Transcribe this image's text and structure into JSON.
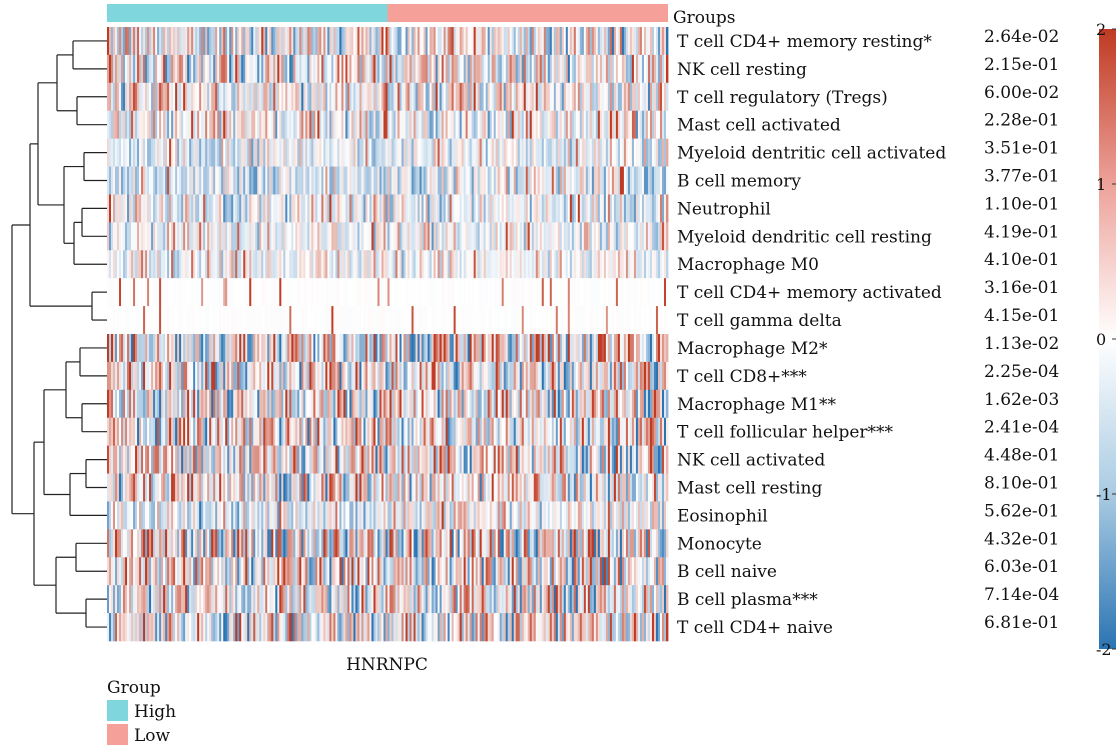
{
  "chart_data": {
    "type": "heatmap",
    "gene": "HNRNPC",
    "rows": [
      {
        "label": "T cell CD4+ memory resting*",
        "pvalue": "2.64e-02",
        "bias": 0.0,
        "contrast": 0.9,
        "sparse": false
      },
      {
        "label": "NK cell resting",
        "pvalue": "2.15e-01",
        "bias": 0.0,
        "contrast": 0.8,
        "sparse": false
      },
      {
        "label": "T cell regulatory (Tregs)",
        "pvalue": "6.00e-02",
        "bias": 0.0,
        "contrast": 0.8,
        "sparse": false
      },
      {
        "label": "Mast cell activated",
        "pvalue": "2.28e-01",
        "bias": -0.1,
        "contrast": 0.6,
        "sparse": false
      },
      {
        "label": "Myeloid dentritic cell activated",
        "pvalue": "3.51e-01",
        "bias": -0.2,
        "contrast": 0.5,
        "sparse": false
      },
      {
        "label": "B cell memory",
        "pvalue": "3.77e-01",
        "bias": -0.3,
        "contrast": 0.6,
        "sparse": false
      },
      {
        "label": "Neutrophil",
        "pvalue": "1.10e-01",
        "bias": -0.2,
        "contrast": 0.6,
        "sparse": false
      },
      {
        "label": "Myeloid dendritic cell resting",
        "pvalue": "4.19e-01",
        "bias": -0.2,
        "contrast": 0.5,
        "sparse": false
      },
      {
        "label": "Macrophage M0",
        "pvalue": "4.10e-01",
        "bias": -0.1,
        "contrast": 0.4,
        "sparse": false
      },
      {
        "label": "T cell CD4+ memory activated",
        "pvalue": "3.16e-01",
        "bias": 0.0,
        "contrast": 0.1,
        "sparse": true
      },
      {
        "label": "T cell gamma delta",
        "pvalue": "4.15e-01",
        "bias": 0.0,
        "contrast": 0.1,
        "sparse": true
      },
      {
        "label": "Macrophage M2*",
        "pvalue": "1.13e-02",
        "bias": 0.0,
        "contrast": 1.2,
        "sparse": false
      },
      {
        "label": "T cell CD8+***",
        "pvalue": "2.25e-04",
        "bias": 0.0,
        "contrast": 1.0,
        "sparse": false
      },
      {
        "label": "Macrophage M1**",
        "pvalue": "1.62e-03",
        "bias": 0.0,
        "contrast": 1.0,
        "sparse": false
      },
      {
        "label": "T cell follicular helper***",
        "pvalue": "2.41e-04",
        "bias": 0.0,
        "contrast": 1.0,
        "sparse": false
      },
      {
        "label": "NK cell activated",
        "pvalue": "4.48e-01",
        "bias": 0.0,
        "contrast": 1.0,
        "sparse": false
      },
      {
        "label": "Mast cell resting",
        "pvalue": "8.10e-01",
        "bias": 0.0,
        "contrast": 0.9,
        "sparse": false
      },
      {
        "label": "Eosinophil",
        "pvalue": "5.62e-01",
        "bias": -0.2,
        "contrast": 0.6,
        "sparse": false
      },
      {
        "label": "Monocyte",
        "pvalue": "4.32e-01",
        "bias": 0.0,
        "contrast": 1.2,
        "sparse": false
      },
      {
        "label": "B cell naive",
        "pvalue": "6.03e-01",
        "bias": 0.0,
        "contrast": 1.0,
        "sparse": false
      },
      {
        "label": "B cell plasma***",
        "pvalue": "7.14e-04",
        "bias": 0.0,
        "contrast": 1.0,
        "sparse": false
      },
      {
        "label": "T cell CD4+ naive",
        "pvalue": "6.81e-01",
        "bias": 0.0,
        "contrast": 0.9,
        "sparse": false
      }
    ],
    "groups_label": "Groups",
    "group_legend_title": "Group",
    "groups": [
      {
        "name": "High",
        "color": "#7fd6dc",
        "fraction": 0.5
      },
      {
        "name": "Low",
        "color": "#f6a09a",
        "fraction": 0.5
      }
    ],
    "color_scale": {
      "min": -2,
      "max": 2,
      "ticks": [
        "2",
        "1",
        "0",
        "-1",
        "-2"
      ],
      "low_color": "#2b74b3",
      "mid_color": "#ffffff",
      "high_color": "#bf3a22"
    }
  }
}
